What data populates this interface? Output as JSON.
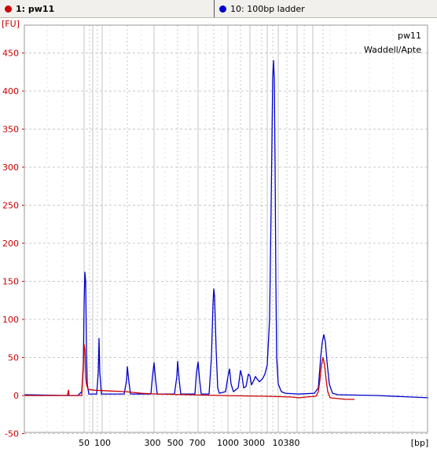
{
  "tabs": [
    {
      "label": "1: pw11",
      "color": "#cc0000"
    },
    {
      "label": "10: 100bp ladder",
      "color": "#0000cc"
    }
  ],
  "annotation": {
    "line1": "pw11",
    "line2": "Waddell/Apte"
  },
  "chart_data": {
    "type": "line",
    "ylabel": "[FU]",
    "xlabel": "[bp]",
    "ylim": [
      -50,
      480
    ],
    "yticks": [
      -50,
      0,
      50,
      100,
      150,
      200,
      250,
      300,
      350,
      400,
      450
    ],
    "xticks": [
      "50",
      "100",
      "300",
      "500",
      "700",
      "1000",
      "3000",
      "10380"
    ],
    "grid": true,
    "series": [
      {
        "name": "10: 100bp ladder",
        "color": "#0000cc",
        "points": [
          [
            31,
            1
          ],
          [
            88,
            0
          ],
          [
            99,
            0
          ],
          [
            104,
            5
          ],
          [
            106,
            40
          ],
          [
            107,
            120
          ],
          [
            108,
            162
          ],
          [
            109,
            150
          ],
          [
            110,
            60
          ],
          [
            111,
            15
          ],
          [
            113,
            2
          ],
          [
            123,
            2
          ],
          [
            125,
            30
          ],
          [
            126,
            75
          ],
          [
            127,
            30
          ],
          [
            129,
            2
          ],
          [
            158,
            2
          ],
          [
            161,
            20
          ],
          [
            162,
            38
          ],
          [
            164,
            18
          ],
          [
            166,
            2
          ],
          [
            192,
            2
          ],
          [
            194,
            25
          ],
          [
            196,
            43
          ],
          [
            198,
            20
          ],
          [
            200,
            2
          ],
          [
            222,
            2
          ],
          [
            225,
            25
          ],
          [
            226,
            45
          ],
          [
            228,
            20
          ],
          [
            230,
            2
          ],
          [
            248,
            2
          ],
          [
            250,
            30
          ],
          [
            252,
            44
          ],
          [
            254,
            20
          ],
          [
            256,
            2
          ],
          [
            266,
            2
          ],
          [
            269,
            50
          ],
          [
            271,
            120
          ],
          [
            272,
            140
          ],
          [
            273,
            130
          ],
          [
            275,
            60
          ],
          [
            277,
            10
          ],
          [
            279,
            3
          ],
          [
            287,
            5
          ],
          [
            290,
            25
          ],
          [
            292,
            35
          ],
          [
            294,
            15
          ],
          [
            297,
            5
          ],
          [
            303,
            10
          ],
          [
            306,
            33
          ],
          [
            308,
            25
          ],
          [
            310,
            10
          ],
          [
            313,
            12
          ],
          [
            316,
            28
          ],
          [
            318,
            26
          ],
          [
            320,
            14
          ],
          [
            323,
            20
          ],
          [
            325,
            25
          ],
          [
            327,
            22
          ],
          [
            330,
            18
          ],
          [
            334,
            22
          ],
          [
            337,
            28
          ],
          [
            340,
            40
          ],
          [
            343,
            100
          ],
          [
            345,
            250
          ],
          [
            347,
            420
          ],
          [
            348,
            440
          ],
          [
            349,
            415
          ],
          [
            350,
            300
          ],
          [
            351,
            150
          ],
          [
            352,
            50
          ],
          [
            354,
            15
          ],
          [
            358,
            5
          ],
          [
            363,
            3
          ],
          [
            380,
            2
          ],
          [
            400,
            3
          ],
          [
            405,
            10
          ],
          [
            408,
            50
          ],
          [
            410,
            70
          ],
          [
            412,
            80
          ],
          [
            414,
            70
          ],
          [
            416,
            45
          ],
          [
            419,
            15
          ],
          [
            423,
            3
          ],
          [
            430,
            1
          ],
          [
            480,
            0
          ],
          [
            545,
            -3
          ]
        ]
      },
      {
        "name": "1: pw11",
        "color": "#cc0000",
        "points": [
          [
            31,
            0
          ],
          [
            84,
            0
          ],
          [
            86,
            1
          ],
          [
            87,
            7
          ],
          [
            88,
            0
          ],
          [
            104,
            0
          ],
          [
            106,
            40
          ],
          [
            107,
            67
          ],
          [
            108,
            60
          ],
          [
            109,
            25
          ],
          [
            110,
            15
          ],
          [
            112,
            8
          ],
          [
            120,
            7
          ],
          [
            140,
            6
          ],
          [
            160,
            5
          ],
          [
            180,
            3
          ],
          [
            200,
            2
          ],
          [
            240,
            1
          ],
          [
            280,
            0
          ],
          [
            340,
            -1
          ],
          [
            370,
            -2
          ],
          [
            380,
            -3
          ],
          [
            390,
            -2
          ],
          [
            402,
            -1
          ],
          [
            405,
            5
          ],
          [
            407,
            20
          ],
          [
            409,
            40
          ],
          [
            411,
            50
          ],
          [
            413,
            40
          ],
          [
            415,
            20
          ],
          [
            417,
            5
          ],
          [
            420,
            -3
          ],
          [
            440,
            -5
          ],
          [
            451,
            -5
          ]
        ]
      }
    ]
  }
}
